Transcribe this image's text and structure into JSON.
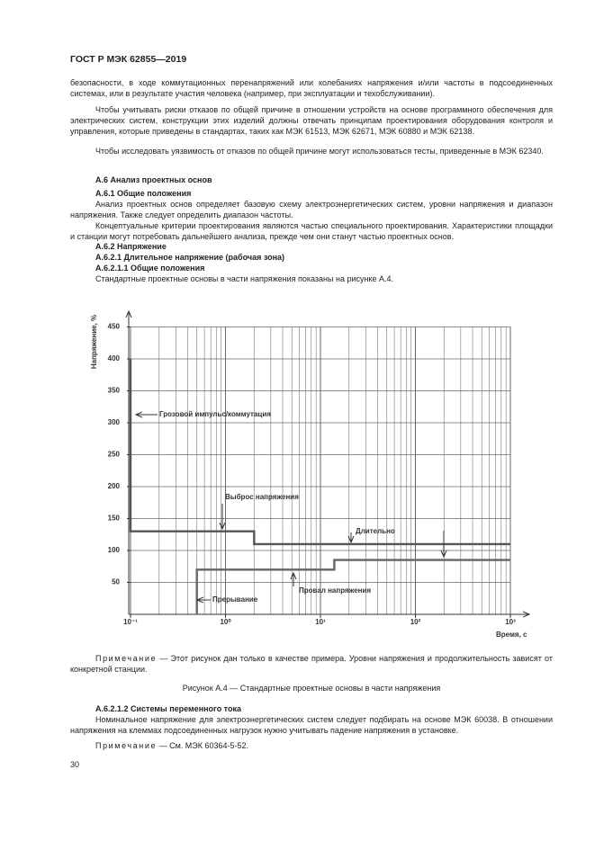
{
  "header": {
    "title": "ГОСТ Р МЭК 62855—2019"
  },
  "body": [
    "безопасности, в ходе коммутационных перенапряжений или колебаниях напряжения и/или частоты в подсоединенных системах, или в результате участия человека (например, при эксплуатации и техобслуживании).",
    "Чтобы учитывать риски отказов по общей причине в отношении устройств на основе программного обеспечения для электрических систем, конструкции этих изделий должны отвечать принципам проектирования оборудования контроля и управления, которые приведены в стандартах, таких как МЭК 61513, МЭК 62671, МЭК 60880 и МЭК 62138.",
    "Чтобы исследовать уязвимость от отказов по общей причине могут использоваться тесты, приведенные в МЭК 62340.",
    "А.6 Анализ проектных основ",
    "А.6.1 Общие положения",
    "Анализ проектных основ определяет базовую схему электроэнергетических систем, уровни напряжения и диапазон напряжения. Также следует определить диапазон частоты.",
    "Концептуальные критерии проектирования являются частью специального проектирования. Характеристики площадки и станции могут потребовать дальнейшего анализа, прежде чем они станут частью проектных основ.",
    "А.6.2 Напряжение",
    "А.6.2.1 Длительное напряжение (рабочая зона)",
    "А.6.2.1.1 Общие положения",
    "Стандартные проектные основы в части напряжения показаны на рисунке А.4."
  ],
  "chart_data": {
    "type": "line",
    "xlabel": "Время, с",
    "ylabel": "Напряжение, %",
    "xlog": true,
    "grid": true,
    "xlim": [
      0.1,
      1000
    ],
    "ylim": [
      0,
      450
    ],
    "xticks": [
      {
        "value": 0.1,
        "label": "10⁻¹"
      },
      {
        "value": 1,
        "label": "10⁰"
      },
      {
        "value": 10,
        "label": "10¹"
      },
      {
        "value": 100,
        "label": "10²"
      },
      {
        "value": 1000,
        "label": "10³"
      }
    ],
    "x_minor_ticks": [
      0.2,
      0.3,
      0.4,
      0.5,
      0.6,
      0.7,
      0.8,
      0.9,
      2,
      3,
      4,
      5,
      6,
      7,
      8,
      9,
      20,
      30,
      40,
      50,
      60,
      70,
      80,
      90,
      200,
      300,
      400,
      500,
      600,
      700,
      800,
      900
    ],
    "yticks": [
      50,
      100,
      150,
      200,
      250,
      300,
      350,
      400,
      450
    ],
    "series": [
      {
        "color": "#555555",
        "x": [
          0.1,
          0.1,
          2,
          2,
          1000
        ],
        "values": [
          400,
          130,
          130,
          110,
          110
        ]
      },
      {
        "color": "#666666",
        "x": [
          0.5,
          0.5,
          14,
          14,
          1000
        ],
        "values": [
          0,
          70,
          70,
          85,
          85
        ]
      }
    ],
    "annotations": [
      "Грозовой импульс/коммутация",
      "Выброс напряжения",
      "Длительно",
      "Провал напряжения",
      "Прерывание"
    ]
  },
  "note1": {
    "label": "Примечание",
    "text": "— Этот рисунок дан только в качестве примера. Уровни напряжения и продолжительность зависят от конкретной станции."
  },
  "caption": "Рисунок А.4 — Стандартные проектные основы в части напряжения",
  "body2": [
    "А.6.2.1.2 Системы переменного тока",
    "Номинальное напряжение для электроэнергетических систем следует подбирать на основе МЭК 60038. В отношении напряжения на клеммах подсоединенных нагрузок нужно учитывать падение напряжения в установке."
  ],
  "note2": {
    "label": "Примечание",
    "text": "— См. МЭК 60364-5-52."
  },
  "footer": {
    "page": "30"
  }
}
